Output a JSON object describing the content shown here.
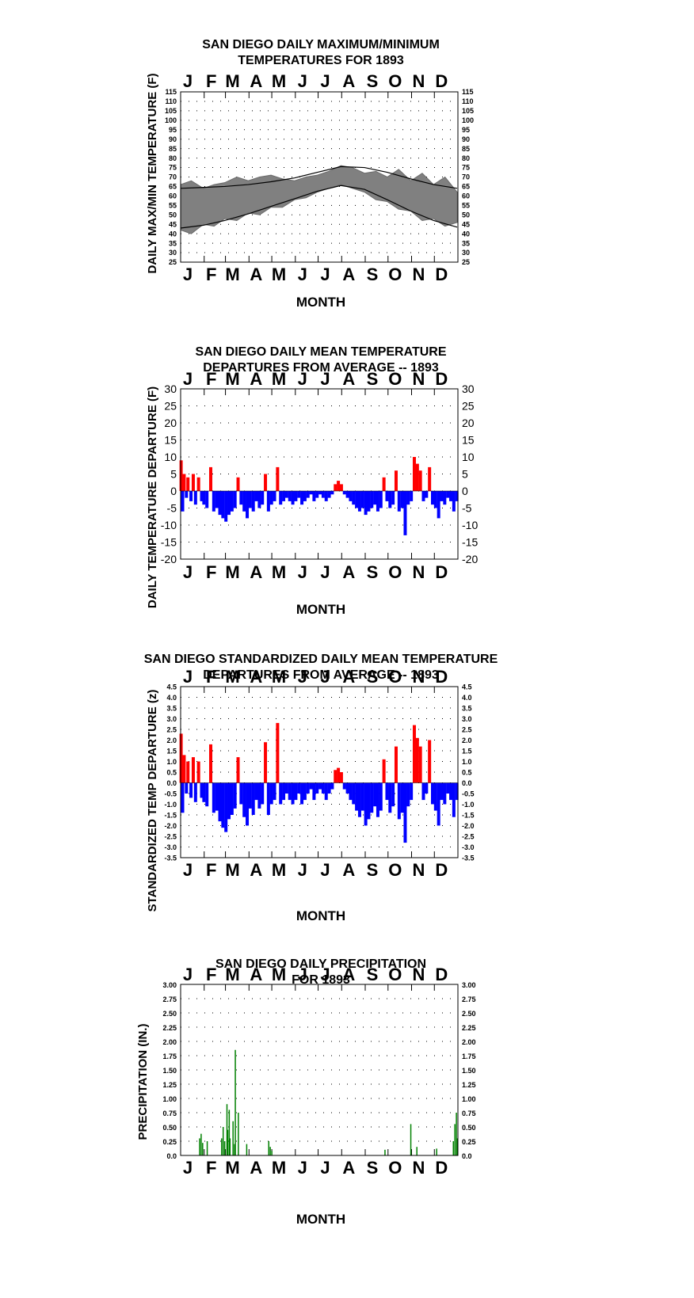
{
  "months": [
    "J",
    "F",
    "M",
    "A",
    "M",
    "J",
    "J",
    "A",
    "S",
    "O",
    "N",
    "D"
  ],
  "colors": {
    "positive": "#ff0000",
    "negative": "#0000ff",
    "precip": "#008000",
    "temp_band": "#808080",
    "normals": "#000000"
  },
  "chart_data": [
    {
      "type": "line",
      "title_line1": "SAN DIEGO DAILY MAXIMUM/MINIMUM",
      "title_line2": "TEMPERATURES FOR 1893",
      "xlabel": "MONTH",
      "ylabel": "DAILY MAX/MIN TEMPERATURE (F)",
      "ylim": [
        25,
        115
      ],
      "yticks": [
        115,
        110,
        105,
        100,
        95,
        90,
        85,
        80,
        75,
        70,
        65,
        60,
        55,
        50,
        45,
        40,
        35,
        30,
        25
      ],
      "series": [
        {
          "role": "normal-max",
          "x": [
            1,
            31,
            59,
            90,
            120,
            151,
            181,
            212,
            243,
            273,
            304,
            334,
            365
          ],
          "values": [
            64,
            64.5,
            65,
            66,
            67.5,
            69.5,
            72.5,
            75.5,
            75,
            72.5,
            69,
            66,
            64
          ]
        },
        {
          "role": "normal-min",
          "x": [
            1,
            31,
            59,
            90,
            120,
            151,
            181,
            212,
            243,
            273,
            304,
            334,
            365
          ],
          "values": [
            43,
            44.5,
            47,
            50.5,
            54.5,
            58.5,
            62.5,
            65.5,
            63.5,
            58,
            52,
            47,
            43.5
          ]
        },
        {
          "role": "observed-max",
          "x": [
            1,
            15,
            31,
            45,
            59,
            75,
            90,
            105,
            120,
            135,
            151,
            166,
            181,
            196,
            212,
            227,
            243,
            258,
            273,
            288,
            304,
            319,
            334,
            349,
            365
          ],
          "values": [
            66,
            68,
            64,
            66,
            67,
            70,
            68,
            70,
            71,
            69,
            68,
            70,
            71,
            73,
            76,
            75,
            72,
            73,
            70,
            74,
            68,
            72,
            66,
            70,
            62
          ]
        },
        {
          "role": "observed-min",
          "x": [
            1,
            15,
            31,
            45,
            59,
            75,
            90,
            105,
            120,
            135,
            151,
            166,
            181,
            196,
            212,
            227,
            243,
            258,
            273,
            288,
            304,
            319,
            334,
            349,
            365
          ],
          "values": [
            42,
            40,
            45,
            44,
            48,
            47,
            51,
            50,
            54,
            54,
            58,
            59,
            62,
            64,
            66,
            64,
            62,
            58,
            57,
            53,
            52,
            47,
            48,
            44,
            46
          ]
        }
      ]
    },
    {
      "type": "bar",
      "title_line1": "SAN DIEGO DAILY MEAN TEMPERATURE",
      "title_line2": "DEPARTURES FROM AVERAGE -- 1893",
      "xlabel": "MONTH",
      "ylabel": "DAILY TEMPERATURE DEPARTURE (F)",
      "ylim": [
        -20,
        30
      ],
      "yticks": [
        30,
        25,
        20,
        15,
        10,
        5,
        0,
        -5,
        -10,
        -15,
        -20
      ],
      "x": [
        1,
        3,
        5,
        8,
        10,
        14,
        17,
        20,
        24,
        28,
        31,
        35,
        40,
        44,
        48,
        52,
        56,
        60,
        64,
        68,
        72,
        76,
        80,
        84,
        88,
        92,
        96,
        100,
        104,
        108,
        112,
        116,
        120,
        124,
        128,
        132,
        136,
        140,
        144,
        148,
        152,
        156,
        160,
        164,
        168,
        172,
        176,
        180,
        184,
        188,
        192,
        196,
        200,
        204,
        208,
        212,
        216,
        220,
        224,
        228,
        232,
        236,
        240,
        244,
        248,
        252,
        256,
        260,
        264,
        268,
        272,
        276,
        280,
        284,
        288,
        292,
        296,
        300,
        304,
        308,
        312,
        316,
        320,
        324,
        328,
        332,
        336,
        340,
        344,
        348,
        352,
        356,
        360,
        364
      ],
      "values": [
        9,
        -6,
        5,
        -2,
        4,
        -3,
        5,
        -4,
        4,
        -3,
        -4,
        -5,
        7,
        -6,
        -5,
        -7,
        -8,
        -9,
        -7,
        -6,
        -5,
        4,
        -4,
        -6,
        -8,
        -5,
        -6,
        -3,
        -5,
        -4,
        5,
        -6,
        -4,
        -3,
        7,
        -4,
        -3,
        -2,
        -3,
        -4,
        -3,
        -2,
        -4,
        -3,
        -2,
        -1,
        -3,
        -2,
        -1,
        -2,
        -3,
        -2,
        -1,
        2,
        3,
        2,
        -1,
        -2,
        -3,
        -4,
        -5,
        -6,
        -5,
        -7,
        -6,
        -5,
        -4,
        -6,
        -5,
        4,
        -3,
        -5,
        -4,
        6,
        -6,
        -5,
        -13,
        -4,
        -3,
        10,
        8,
        6,
        -3,
        -2,
        7,
        -4,
        -5,
        -8,
        -3,
        -4,
        -2,
        -3,
        -6,
        -3
      ]
    },
    {
      "type": "bar",
      "title_line1": "SAN DIEGO STANDARDIZED DAILY MEAN TEMPERATURE",
      "title_line2": "DEPARTURES FROM AVERAGE -- 1893",
      "xlabel": "MONTH",
      "ylabel": "STANDARDIZED TEMP DEPARTURE (z)",
      "ylim": [
        -3.5,
        4.5
      ],
      "yticks": [
        "4.5",
        "4.0",
        "3.5",
        "3.0",
        "2.5",
        "2.0",
        "1.5",
        "1.0",
        "0.5",
        "0.0",
        "-0.5",
        "-1.0",
        "-1.5",
        "-2.0",
        "-2.5",
        "-3.0",
        "-3.5"
      ],
      "x": [
        1,
        3,
        5,
        8,
        10,
        14,
        17,
        20,
        24,
        28,
        31,
        35,
        40,
        44,
        48,
        52,
        56,
        60,
        64,
        68,
        72,
        76,
        80,
        84,
        88,
        92,
        96,
        100,
        104,
        108,
        112,
        116,
        120,
        124,
        128,
        132,
        136,
        140,
        144,
        148,
        152,
        156,
        160,
        164,
        168,
        172,
        176,
        180,
        184,
        188,
        192,
        196,
        200,
        204,
        208,
        212,
        216,
        220,
        224,
        228,
        232,
        236,
        240,
        244,
        248,
        252,
        256,
        260,
        264,
        268,
        272,
        276,
        280,
        284,
        288,
        292,
        296,
        300,
        304,
        308,
        312,
        316,
        320,
        324,
        328,
        332,
        336,
        340,
        344,
        348,
        352,
        356,
        360,
        364
      ],
      "values": [
        2.3,
        -1.4,
        1.3,
        -0.5,
        1.0,
        -0.7,
        1.2,
        -0.9,
        1.0,
        -0.7,
        -0.9,
        -1.1,
        1.8,
        -1.4,
        -1.3,
        -1.8,
        -2.1,
        -2.3,
        -1.7,
        -1.5,
        -1.2,
        1.2,
        -1.0,
        -1.6,
        -2.0,
        -1.2,
        -1.5,
        -0.8,
        -1.2,
        -1.0,
        1.9,
        -1.5,
        -1.0,
        -0.8,
        2.8,
        -1.0,
        -0.8,
        -0.5,
        -0.8,
        -1.0,
        -0.8,
        -0.5,
        -1.0,
        -0.8,
        -0.5,
        -0.3,
        -0.8,
        -0.5,
        -0.3,
        -0.5,
        -0.8,
        -0.5,
        -0.3,
        0.6,
        0.7,
        0.5,
        -0.3,
        -0.5,
        -0.8,
        -1.0,
        -1.3,
        -1.6,
        -1.3,
        -2.0,
        -1.7,
        -1.4,
        -1.1,
        -1.6,
        -1.3,
        1.1,
        -0.8,
        -1.4,
        -1.1,
        1.7,
        -1.7,
        -1.4,
        -2.8,
        -1.1,
        -0.8,
        2.7,
        2.1,
        1.7,
        -0.8,
        -0.5,
        2.0,
        -1.0,
        -1.3,
        -2.0,
        -0.8,
        -1.0,
        -0.5,
        -0.8,
        -1.6,
        -0.8
      ]
    },
    {
      "type": "bar",
      "title_line1": "SAN DIEGO DAILY PRECIPITATION",
      "title_line2": "FOR 1893",
      "xlabel": "MONTH",
      "ylabel": "PRECIPITATION (IN.)",
      "ylim": [
        0,
        3
      ],
      "yticks": [
        "3.00",
        "2.75",
        "2.50",
        "2.25",
        "2.00",
        "1.75",
        "1.50",
        "1.25",
        "1.00",
        "0.75",
        "0.50",
        "0.25",
        "0.0"
      ],
      "x": [
        26,
        28,
        30,
        36,
        55,
        57,
        59,
        62,
        63,
        65,
        66,
        70,
        72,
        73,
        77,
        88,
        117,
        119,
        121,
        270,
        304,
        312,
        338,
        360,
        362,
        364,
        365
      ],
      "values": [
        0.3,
        0.38,
        0.22,
        0.25,
        0.3,
        0.5,
        0.25,
        0.9,
        0.45,
        0.8,
        0.3,
        0.6,
        0.2,
        1.85,
        0.75,
        0.2,
        0.25,
        0.15,
        0.08,
        0.1,
        0.55,
        0.15,
        0.12,
        0.25,
        0.55,
        0.75,
        0.3
      ]
    }
  ]
}
